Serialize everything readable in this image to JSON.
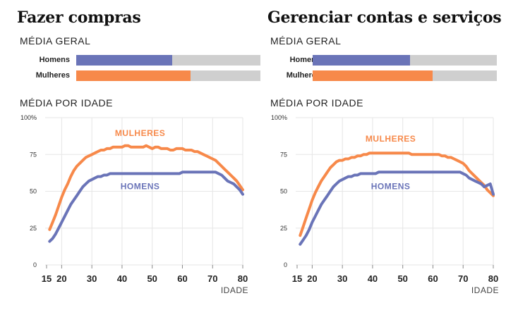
{
  "colors": {
    "men": "#6a74b8",
    "women": "#f7894a",
    "track": "#cfcfcf",
    "grid": "#e0e0e0"
  },
  "panels": [
    {
      "title": "Fazer compras",
      "overall_label": "MÉDIA GERAL",
      "men_label": "Homens",
      "women_label": "Mulheres",
      "men_overall": 52,
      "women_overall": 62,
      "by_age_label": "MÉDIA POR IDADE"
    },
    {
      "title": "Gerenciar contas e serviços",
      "overall_label": "MÉDIA GERAL",
      "men_label": "Homens",
      "women_label": "Mulheres",
      "men_overall": 53,
      "women_overall": 65,
      "by_age_label": "MÉDIA POR IDADE"
    }
  ],
  "chart_data": [
    {
      "type": "line",
      "title": "Fazer compras",
      "xlabel": "IDADE",
      "ylabel": "",
      "xlim": [
        15,
        80
      ],
      "ylim": [
        0,
        100
      ],
      "x_ticks": [
        "15",
        "20",
        "30",
        "40",
        "50",
        "60",
        "70",
        "80"
      ],
      "y_ticks": [
        "0",
        "25",
        "50",
        "75",
        "100%"
      ],
      "series_label_positions": [
        "above",
        "below"
      ],
      "x": [
        16,
        17,
        18,
        19,
        20,
        21,
        22,
        23,
        24,
        25,
        26,
        27,
        28,
        29,
        30,
        31,
        32,
        33,
        34,
        35,
        36,
        37,
        38,
        39,
        40,
        41,
        42,
        43,
        44,
        45,
        46,
        47,
        48,
        49,
        50,
        51,
        52,
        53,
        54,
        55,
        56,
        57,
        58,
        59,
        60,
        61,
        62,
        63,
        64,
        65,
        66,
        67,
        68,
        69,
        70,
        71,
        72,
        73,
        74,
        75,
        76,
        77,
        78,
        79,
        80
      ],
      "series": [
        {
          "name": "MULHERES",
          "values": [
            24,
            29,
            34,
            40,
            46,
            51,
            55,
            60,
            64,
            67,
            69,
            71,
            73,
            74,
            75,
            76,
            77,
            78,
            78,
            79,
            79,
            80,
            80,
            80,
            80,
            81,
            81,
            80,
            80,
            80,
            80,
            80,
            81,
            80,
            79,
            80,
            80,
            79,
            79,
            79,
            78,
            78,
            79,
            79,
            79,
            78,
            78,
            78,
            77,
            77,
            76,
            75,
            74,
            73,
            72,
            71,
            69,
            67,
            65,
            63,
            61,
            59,
            57,
            54,
            51
          ]
        },
        {
          "name": "HOMENS",
          "values": [
            16,
            18,
            21,
            25,
            29,
            33,
            37,
            41,
            44,
            47,
            50,
            53,
            55,
            57,
            58,
            59,
            60,
            60,
            61,
            61,
            62,
            62,
            62,
            62,
            62,
            62,
            62,
            62,
            62,
            62,
            62,
            62,
            62,
            62,
            62,
            62,
            62,
            62,
            62,
            62,
            62,
            62,
            62,
            62,
            63,
            63,
            63,
            63,
            63,
            63,
            63,
            63,
            63,
            63,
            63,
            63,
            62,
            61,
            59,
            57,
            56,
            55,
            53,
            51,
            48
          ]
        }
      ]
    },
    {
      "type": "line",
      "title": "Gerenciar contas e serviços",
      "xlabel": "IDADE",
      "ylabel": "",
      "xlim": [
        15,
        80
      ],
      "ylim": [
        0,
        100
      ],
      "x_ticks": [
        "15",
        "20",
        "30",
        "40",
        "50",
        "60",
        "70",
        "80"
      ],
      "y_ticks": [
        "0",
        "25",
        "50",
        "75",
        "100%"
      ],
      "series_label_positions": [
        "above",
        "below"
      ],
      "x": [
        16,
        17,
        18,
        19,
        20,
        21,
        22,
        23,
        24,
        25,
        26,
        27,
        28,
        29,
        30,
        31,
        32,
        33,
        34,
        35,
        36,
        37,
        38,
        39,
        40,
        41,
        42,
        43,
        44,
        45,
        46,
        47,
        48,
        49,
        50,
        51,
        52,
        53,
        54,
        55,
        56,
        57,
        58,
        59,
        60,
        61,
        62,
        63,
        64,
        65,
        66,
        67,
        68,
        69,
        70,
        71,
        72,
        73,
        74,
        75,
        76,
        77,
        78,
        79,
        80
      ],
      "series": [
        {
          "name": "MULHERES",
          "values": [
            20,
            26,
            32,
            38,
            44,
            49,
            53,
            57,
            60,
            63,
            66,
            68,
            70,
            71,
            71,
            72,
            72,
            73,
            73,
            74,
            74,
            75,
            75,
            76,
            76,
            76,
            76,
            76,
            76,
            76,
            76,
            76,
            76,
            76,
            76,
            76,
            76,
            75,
            75,
            75,
            75,
            75,
            75,
            75,
            75,
            75,
            75,
            74,
            74,
            73,
            73,
            72,
            71,
            70,
            69,
            67,
            64,
            62,
            60,
            58,
            56,
            54,
            51,
            49,
            47
          ]
        },
        {
          "name": "HOMENS",
          "values": [
            14,
            17,
            20,
            24,
            29,
            33,
            37,
            41,
            44,
            47,
            50,
            53,
            55,
            57,
            58,
            59,
            60,
            60,
            61,
            61,
            62,
            62,
            62,
            62,
            62,
            62,
            63,
            63,
            63,
            63,
            63,
            63,
            63,
            63,
            63,
            63,
            63,
            63,
            63,
            63,
            63,
            63,
            63,
            63,
            63,
            63,
            63,
            63,
            63,
            63,
            63,
            63,
            63,
            63,
            62,
            61,
            59,
            58,
            57,
            56,
            55,
            53,
            54,
            55,
            48
          ]
        }
      ]
    }
  ]
}
